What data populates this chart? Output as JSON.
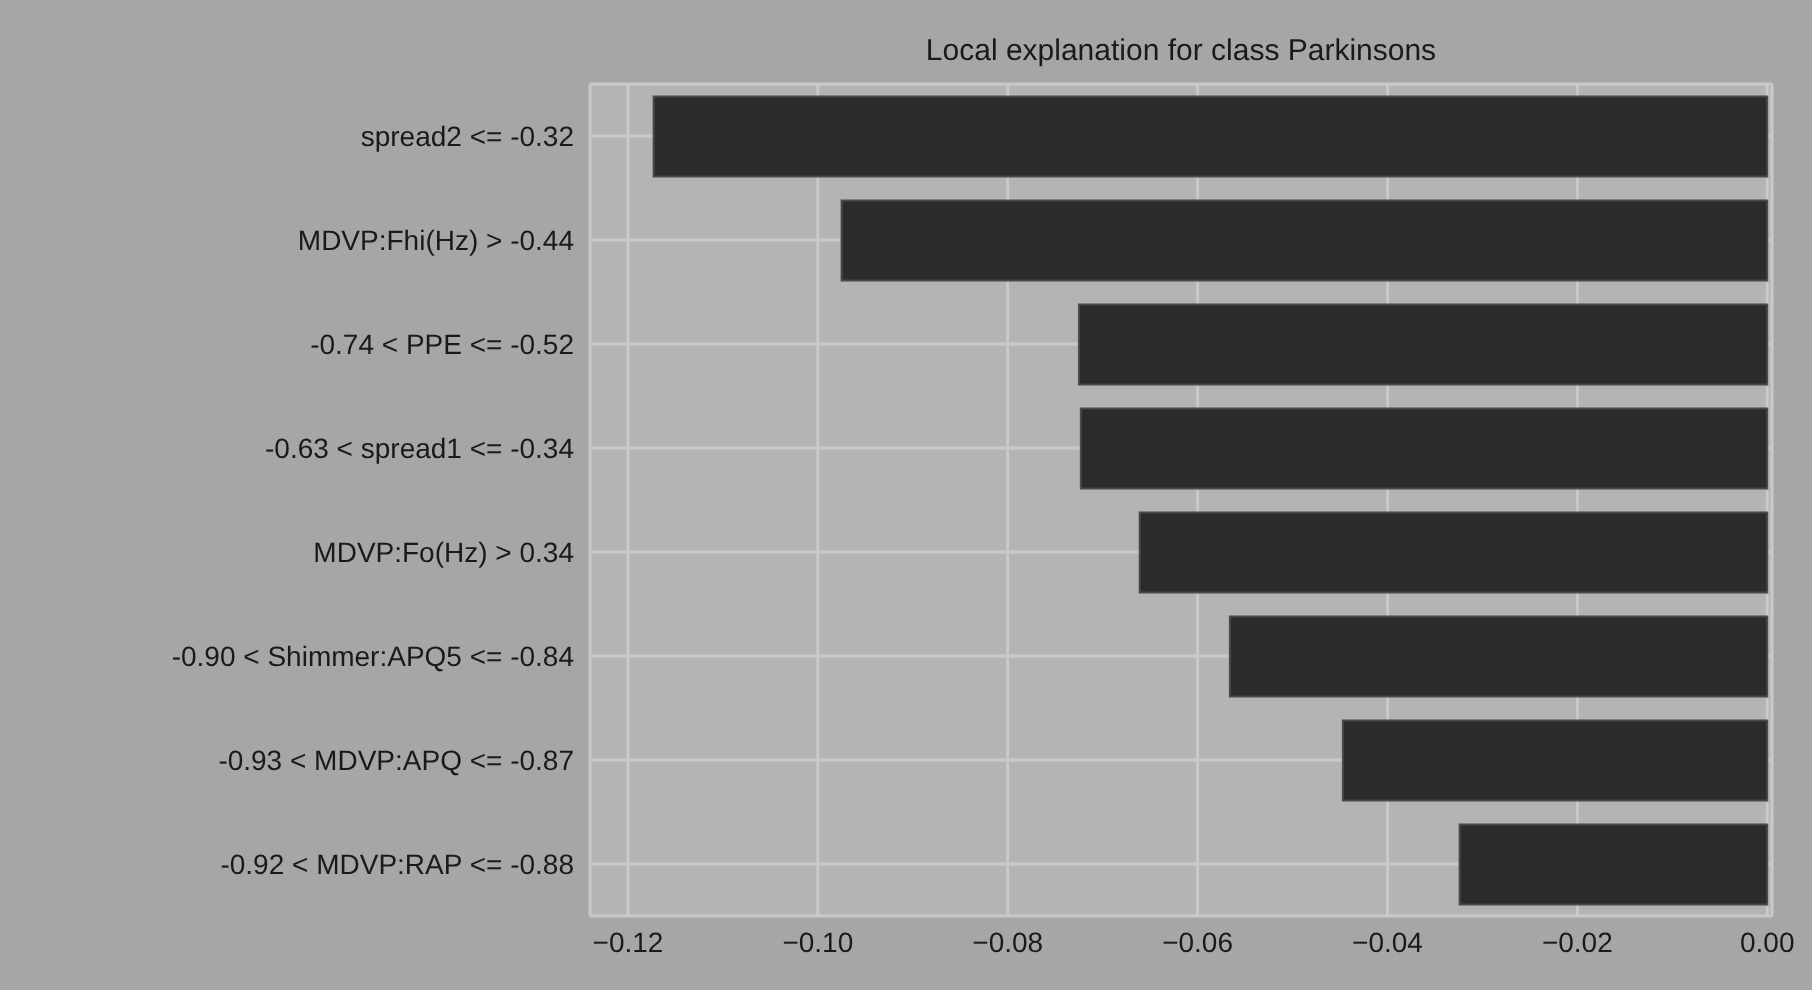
{
  "chart_data": {
    "type": "bar",
    "orientation": "horizontal",
    "title": "Local explanation for class Parkinsons",
    "categories": [
      "spread2 <= -0.32",
      "MDVP:Fhi(Hz) > -0.44",
      "-0.74 < PPE <= -0.52",
      "-0.63 < spread1 <= -0.34",
      "MDVP:Fo(Hz) > 0.34",
      "-0.90 < Shimmer:APQ5 <= -0.84",
      "-0.93 < MDVP:APQ <= -0.87",
      "-0.92 < MDVP:RAP <= -0.88"
    ],
    "values": [
      -0.1173,
      -0.0975,
      -0.0725,
      -0.0723,
      -0.0661,
      -0.0566,
      -0.0447,
      -0.0324
    ],
    "color": "#2b2b2b",
    "xlim": [
      -0.124,
      0.0005
    ],
    "xticks": [
      {
        "value": -0.12,
        "label": "−0.12"
      },
      {
        "value": -0.1,
        "label": "−0.10"
      },
      {
        "value": -0.08,
        "label": "−0.08"
      },
      {
        "value": -0.06,
        "label": "−0.06"
      },
      {
        "value": -0.04,
        "label": "−0.04"
      },
      {
        "value": -0.02,
        "label": "−0.02"
      },
      {
        "value": 0,
        "label": "0.00"
      }
    ],
    "grid": true
  }
}
